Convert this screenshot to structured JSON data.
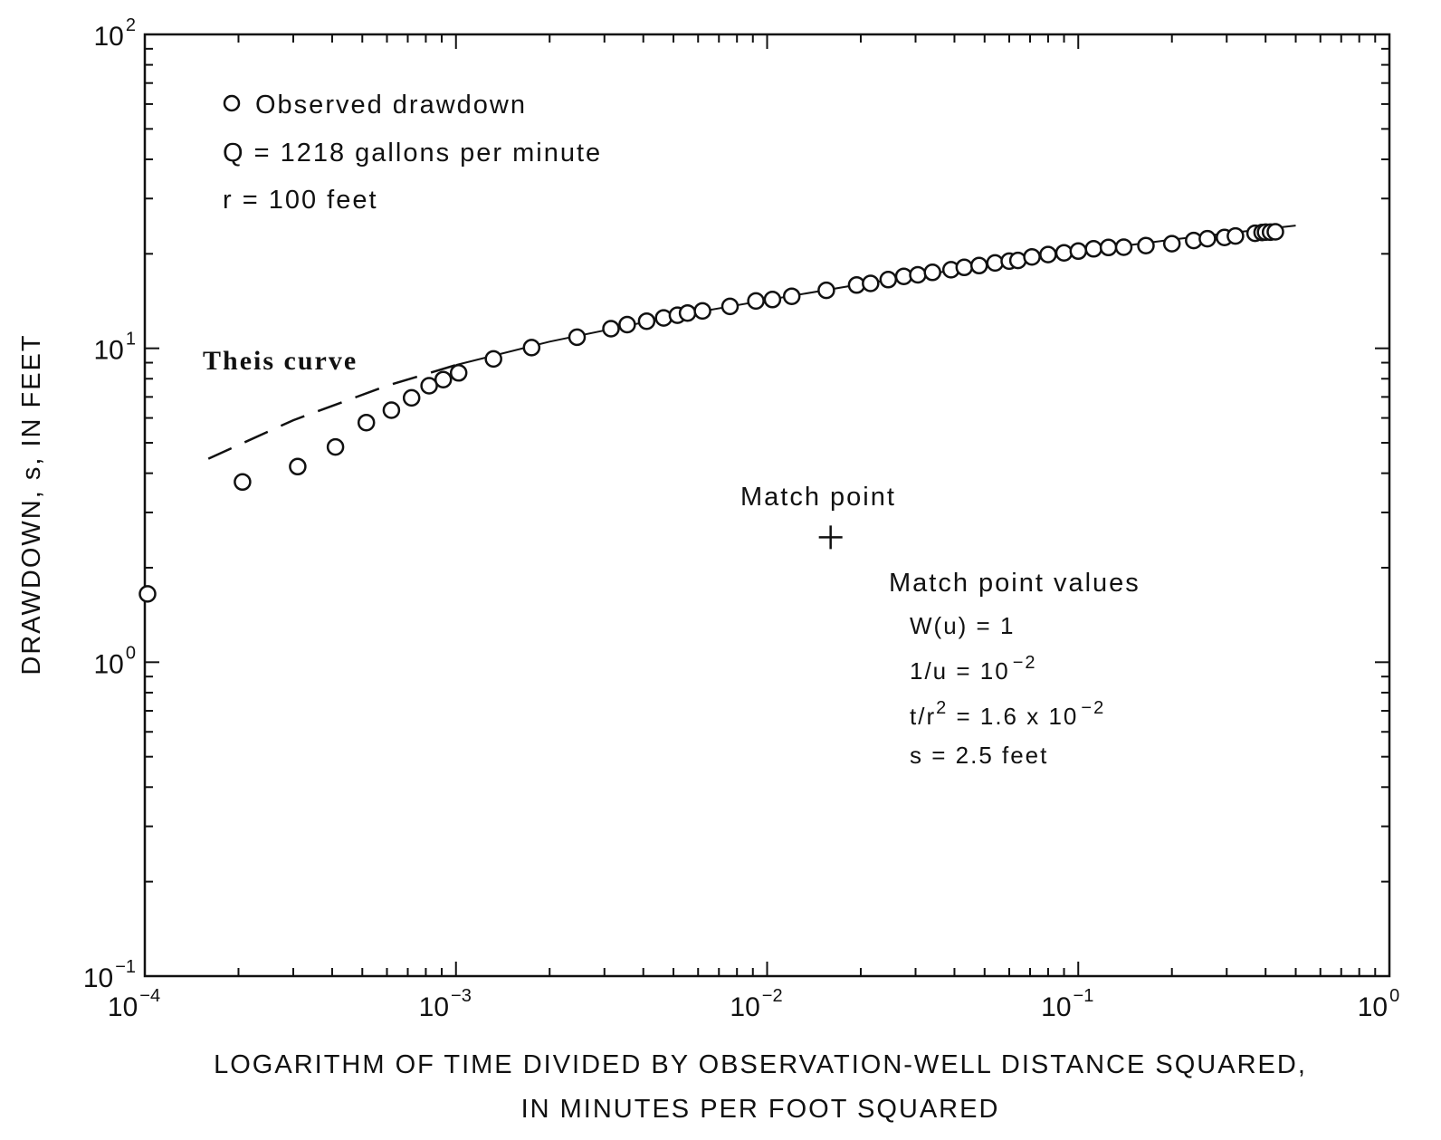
{
  "chart_data": {
    "type": "scatter",
    "xscale": "log",
    "yscale": "log",
    "xlim": [
      0.0001,
      1
    ],
    "ylim": [
      0.1,
      100
    ],
    "x_ticks": [
      {
        "base": "10",
        "exp": "−4",
        "value": 0.0001
      },
      {
        "base": "10",
        "exp": "−3",
        "value": 0.001
      },
      {
        "base": "10",
        "exp": "−2",
        "value": 0.01
      },
      {
        "base": "10",
        "exp": "−1",
        "value": 0.1
      },
      {
        "base": "10",
        "exp": "0",
        "value": 1
      }
    ],
    "y_ticks": [
      {
        "base": "10",
        "exp": "−1",
        "value": 0.1
      },
      {
        "base": "10",
        "exp": "0",
        "value": 1
      },
      {
        "base": "10",
        "exp": "1",
        "value": 10
      },
      {
        "base": "10",
        "exp": "2",
        "value": 100
      }
    ],
    "xlabel_lines": [
      "LOGARITHM OF TIME DIVIDED BY OBSERVATION-WELL DISTANCE SQUARED,",
      "IN MINUTES PER FOOT SQUARED"
    ],
    "ylabel": "DRAWDOWN, s, IN FEET",
    "grid": false,
    "legend": {
      "entry": "Observed drawdown",
      "q_line": "Q = 1218 gallons per minute",
      "r_line": "r = 100 feet"
    },
    "series": [
      {
        "name": "Observed drawdown",
        "marker": "open-circle",
        "points": [
          [
            0.000102,
            1.65
          ],
          [
            0.000206,
            3.75
          ],
          [
            0.00031,
            4.2
          ],
          [
            0.00041,
            4.85
          ],
          [
            0.000515,
            5.8
          ],
          [
            0.00062,
            6.35
          ],
          [
            0.00072,
            6.95
          ],
          [
            0.00082,
            7.6
          ],
          [
            0.00091,
            7.95
          ],
          [
            0.00102,
            8.35
          ],
          [
            0.00132,
            9.25
          ],
          [
            0.00175,
            10.05
          ],
          [
            0.00245,
            10.85
          ],
          [
            0.00315,
            11.55
          ],
          [
            0.00355,
            11.9
          ],
          [
            0.0041,
            12.2
          ],
          [
            0.00465,
            12.5
          ],
          [
            0.00515,
            12.75
          ],
          [
            0.00555,
            12.95
          ],
          [
            0.0062,
            13.15
          ],
          [
            0.0076,
            13.6
          ],
          [
            0.0092,
            14.15
          ],
          [
            0.0104,
            14.3
          ],
          [
            0.012,
            14.65
          ],
          [
            0.0155,
            15.3
          ],
          [
            0.0194,
            15.9
          ],
          [
            0.0215,
            16.1
          ],
          [
            0.0245,
            16.55
          ],
          [
            0.0275,
            16.95
          ],
          [
            0.0305,
            17.15
          ],
          [
            0.034,
            17.45
          ],
          [
            0.039,
            17.8
          ],
          [
            0.043,
            18.1
          ],
          [
            0.048,
            18.35
          ],
          [
            0.054,
            18.7
          ],
          [
            0.06,
            18.95
          ],
          [
            0.064,
            19.05
          ],
          [
            0.071,
            19.55
          ],
          [
            0.08,
            19.9
          ],
          [
            0.09,
            20.15
          ],
          [
            0.1,
            20.4
          ],
          [
            0.112,
            20.75
          ],
          [
            0.125,
            20.95
          ],
          [
            0.14,
            21.0
          ],
          [
            0.165,
            21.25
          ],
          [
            0.2,
            21.55
          ],
          [
            0.235,
            22.05
          ],
          [
            0.26,
            22.35
          ],
          [
            0.295,
            22.55
          ],
          [
            0.32,
            22.8
          ],
          [
            0.37,
            23.25
          ],
          [
            0.39,
            23.4
          ],
          [
            0.4,
            23.45
          ],
          [
            0.415,
            23.45
          ],
          [
            0.43,
            23.5
          ]
        ]
      },
      {
        "name": "Theis curve",
        "style": "dashed-then-solid",
        "points": [
          [
            0.00016,
            4.45
          ],
          [
            0.0003,
            5.9
          ],
          [
            0.0006,
            7.6
          ],
          [
            0.001,
            8.85
          ],
          [
            0.002,
            10.5
          ],
          [
            0.005,
            12.65
          ],
          [
            0.01,
            14.25
          ],
          [
            0.02,
            16.0
          ],
          [
            0.05,
            18.35
          ],
          [
            0.1,
            20.3
          ],
          [
            0.2,
            22.2
          ],
          [
            0.5,
            24.6
          ]
        ]
      }
    ],
    "annotations": {
      "theis_label": "Theis curve",
      "match_point_label": "Match point",
      "match_point": {
        "x": 0.016,
        "y": 2.5
      },
      "match_values_title": "Match point values",
      "wu_line": "W(u) = 1",
      "invu_text": "1/u = 10",
      "invu_exp": "−2",
      "tr2_prefix": "t/r",
      "tr2_sq": "2",
      "tr2_mid": " = 1.6 x 10",
      "tr2_exp": "−2",
      "s_line": "s = 2.5  feet"
    }
  }
}
